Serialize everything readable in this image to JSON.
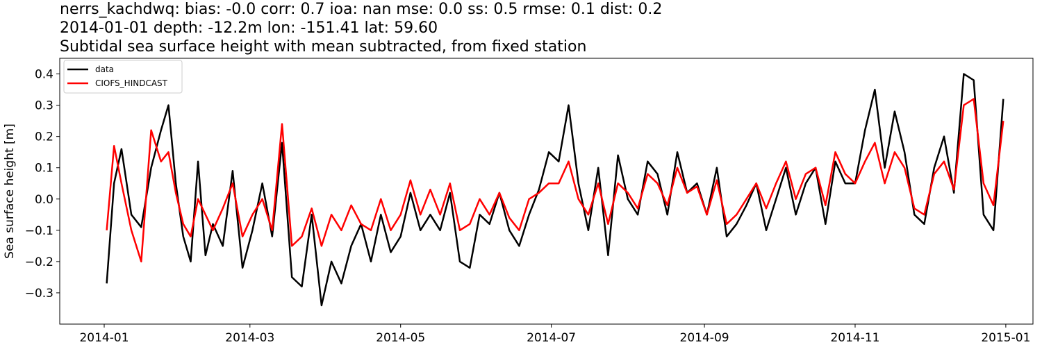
{
  "header": {
    "line1": "nerrs_kachdwq: bias: -0.0  corr: 0.7  ioa: nan  mse: 0.0  ss: 0.5  rmse: 0.1  dist: 0.2",
    "line2": "2014-01-01 depth: -12.2m lon: -151.41 lat: 59.60",
    "line3": "Subtidal sea surface height with mean subtracted, from fixed station"
  },
  "chart_data": {
    "type": "line",
    "title": "Subtidal sea surface height with mean subtracted, from fixed station",
    "xlabel": "",
    "ylabel": "Sea surface height [m]",
    "xlim": [
      "2013-12-14",
      "2015-01-12"
    ],
    "ylim": [
      -0.4,
      0.45
    ],
    "grid": false,
    "legend": "top-left",
    "x_ticks": [
      "2014-01",
      "2014-03",
      "2014-05",
      "2014-07",
      "2014-09",
      "2014-11",
      "2015-01"
    ],
    "y_ticks": [
      -0.3,
      -0.2,
      -0.1,
      0.0,
      0.1,
      0.2,
      0.3,
      0.4
    ],
    "y_tick_labels": [
      "−0.3",
      "−0.2",
      "−0.1",
      "0.0",
      "0.1",
      "0.2",
      "0.3",
      "0.4"
    ],
    "x": [
      "2014-01-02",
      "2014-01-05",
      "2014-01-08",
      "2014-01-12",
      "2014-01-16",
      "2014-01-20",
      "2014-01-24",
      "2014-01-27",
      "2014-01-30",
      "2014-02-02",
      "2014-02-05",
      "2014-02-08",
      "2014-02-11",
      "2014-02-14",
      "2014-02-18",
      "2014-02-22",
      "2014-02-26",
      "2014-03-02",
      "2014-03-06",
      "2014-03-10",
      "2014-03-14",
      "2014-03-18",
      "2014-03-22",
      "2014-03-26",
      "2014-03-30",
      "2014-04-03",
      "2014-04-07",
      "2014-04-11",
      "2014-04-15",
      "2014-04-19",
      "2014-04-23",
      "2014-04-27",
      "2014-05-01",
      "2014-05-05",
      "2014-05-09",
      "2014-05-13",
      "2014-05-17",
      "2014-05-21",
      "2014-05-25",
      "2014-05-29",
      "2014-06-02",
      "2014-06-06",
      "2014-06-10",
      "2014-06-14",
      "2014-06-18",
      "2014-06-22",
      "2014-06-26",
      "2014-06-30",
      "2014-07-04",
      "2014-07-08",
      "2014-07-12",
      "2014-07-16",
      "2014-07-20",
      "2014-07-24",
      "2014-07-28",
      "2014-08-01",
      "2014-08-05",
      "2014-08-09",
      "2014-08-13",
      "2014-08-17",
      "2014-08-21",
      "2014-08-25",
      "2014-08-29",
      "2014-09-02",
      "2014-09-06",
      "2014-09-10",
      "2014-09-14",
      "2014-09-18",
      "2014-09-22",
      "2014-09-26",
      "2014-09-30",
      "2014-10-04",
      "2014-10-08",
      "2014-10-12",
      "2014-10-16",
      "2014-10-20",
      "2014-10-24",
      "2014-10-28",
      "2014-11-01",
      "2014-11-05",
      "2014-11-09",
      "2014-11-13",
      "2014-11-17",
      "2014-11-21",
      "2014-11-25",
      "2014-11-29",
      "2014-12-03",
      "2014-12-07",
      "2014-12-11",
      "2014-12-15",
      "2014-12-19",
      "2014-12-23",
      "2014-12-27",
      "2014-12-31"
    ],
    "series": [
      {
        "name": "data",
        "color": "#000000",
        "values": [
          -0.27,
          0.05,
          0.16,
          -0.05,
          -0.09,
          0.1,
          0.22,
          0.3,
          0.05,
          -0.12,
          -0.2,
          0.12,
          -0.18,
          -0.08,
          -0.15,
          0.09,
          -0.22,
          -0.1,
          0.05,
          -0.12,
          0.18,
          -0.25,
          -0.28,
          -0.05,
          -0.34,
          -0.2,
          -0.27,
          -0.15,
          -0.08,
          -0.2,
          -0.05,
          -0.17,
          -0.12,
          0.02,
          -0.1,
          -0.05,
          -0.1,
          0.02,
          -0.2,
          -0.22,
          -0.05,
          -0.08,
          0.02,
          -0.1,
          -0.15,
          -0.05,
          0.03,
          0.15,
          0.12,
          0.3,
          0.05,
          -0.1,
          0.1,
          -0.18,
          0.14,
          0.0,
          -0.05,
          0.12,
          0.08,
          -0.05,
          0.15,
          0.02,
          0.05,
          -0.05,
          0.1,
          -0.12,
          -0.08,
          -0.02,
          0.05,
          -0.1,
          0.0,
          0.1,
          -0.05,
          0.05,
          0.1,
          -0.08,
          0.12,
          0.05,
          0.05,
          0.22,
          0.35,
          0.1,
          0.28,
          0.15,
          -0.05,
          -0.08,
          0.1,
          0.2,
          0.02,
          0.4,
          0.38,
          -0.05,
          -0.1,
          0.32
        ]
      },
      {
        "name": "CIOFS_HINDCAST",
        "color": "#ff0000",
        "values": [
          -0.1,
          0.17,
          0.05,
          -0.1,
          -0.2,
          0.22,
          0.12,
          0.15,
          0.02,
          -0.08,
          -0.12,
          0.0,
          -0.05,
          -0.1,
          -0.03,
          0.05,
          -0.12,
          -0.05,
          0.0,
          -0.1,
          0.24,
          -0.15,
          -0.12,
          -0.03,
          -0.15,
          -0.05,
          -0.1,
          -0.02,
          -0.08,
          -0.1,
          0.0,
          -0.1,
          -0.05,
          0.06,
          -0.05,
          0.03,
          -0.05,
          0.05,
          -0.1,
          -0.08,
          0.0,
          -0.05,
          0.02,
          -0.06,
          -0.1,
          0.0,
          0.02,
          0.05,
          0.05,
          0.12,
          0.0,
          -0.05,
          0.05,
          -0.08,
          0.05,
          0.02,
          -0.03,
          0.08,
          0.05,
          -0.02,
          0.1,
          0.02,
          0.04,
          -0.05,
          0.06,
          -0.08,
          -0.05,
          0.0,
          0.05,
          -0.03,
          0.05,
          0.12,
          0.0,
          0.08,
          0.1,
          -0.02,
          0.15,
          0.08,
          0.05,
          0.12,
          0.18,
          0.05,
          0.15,
          0.1,
          -0.03,
          -0.05,
          0.08,
          0.12,
          0.03,
          0.3,
          0.32,
          0.05,
          -0.02,
          0.25
        ]
      }
    ]
  }
}
